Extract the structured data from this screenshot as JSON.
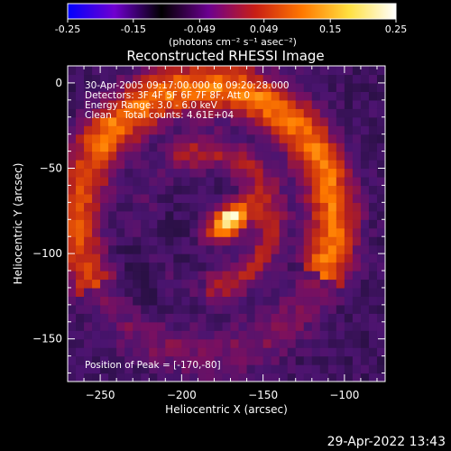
{
  "chart_data": {
    "type": "heatmap",
    "title": "Reconstructed RHESSI Image",
    "xlabel": "Heliocentric X (arcsec)",
    "ylabel": "Heliocentric Y (arcsec)",
    "xlim": [
      -270,
      -75
    ],
    "ylim": [
      -175,
      10
    ],
    "x_ticks": [
      -250,
      -200,
      -150,
      -100
    ],
    "y_ticks": [
      0,
      -50,
      -100,
      -150
    ],
    "annotations": [
      "30-Apr-2005 09:17:00.000 to 09:20:28.000",
      "Detectors: 3F 4F 5F 6F 7F 8F, Att 0",
      "Energy Range: 3.0 - 6.0 keV",
      "Clean    Total counts: 4.61E+04"
    ],
    "peak_label": "Position of Peak = [-170,-80]",
    "peak_position": [
      -170,
      -80
    ],
    "colorbar": {
      "range": [
        -0.25,
        0.25
      ],
      "ticks": [
        "-0.25",
        "-0.15",
        "-0.049",
        "0.049",
        "0.15",
        "0.25"
      ],
      "unit_label": "(photons cm⁻² s⁻¹ asec⁻²)"
    },
    "colormap_stops": [
      "#0000ff",
      "#7000d0",
      "#000000",
      "#6b0090",
      "#c81e14",
      "#ff7800",
      "#ffe040",
      "#ffffff"
    ]
  },
  "timestamp": "29-Apr-2022 13:43"
}
